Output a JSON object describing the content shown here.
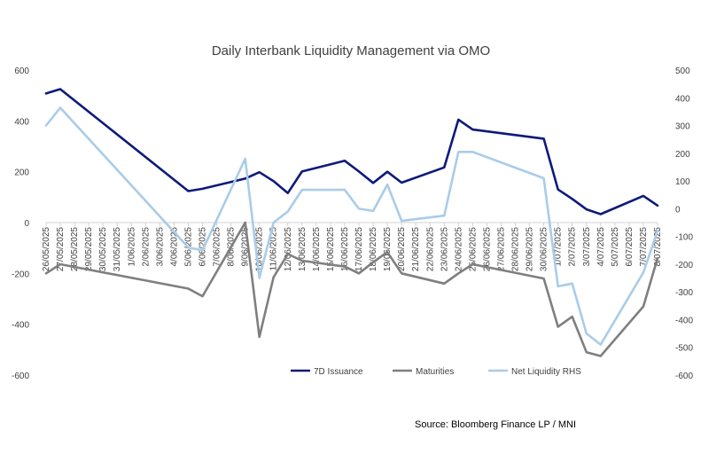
{
  "chart_data": {
    "type": "line",
    "title": "Daily Interbank Liquidity Management via OMO",
    "source": "Source: Bloomberg Finance LP / MNI",
    "xlabel": "",
    "ylabel": "",
    "ylim": [
      -600,
      600
    ],
    "y2lim": [
      -600,
      500
    ],
    "y_ticks": [
      "600",
      "400",
      "200",
      "0",
      "-200",
      "-400",
      "-600"
    ],
    "y2_ticks": [
      "500",
      "400",
      "300",
      "200",
      "100",
      "0",
      "-100",
      "-200",
      "-300",
      "-400",
      "-500",
      "-600"
    ],
    "grid": false,
    "legend_position": "bottom",
    "x_tick_labels": [
      "26/05/2025",
      "27/05/2025",
      "28/05/2025",
      "29/05/2025",
      "30/05/2025",
      "31/05/2025",
      "1/06/2025",
      "2/06/2025",
      "3/06/2025",
      "4/06/2025",
      "5/06/2025",
      "6/06/2025",
      "7/06/2025",
      "8/06/2025",
      "9/06/2025",
      "10/06/2025",
      "11/06/2025",
      "12/06/2025",
      "13/06/2025",
      "14/06/2025",
      "15/06/2025",
      "16/06/2025",
      "17/06/2025",
      "18/06/2025",
      "19/06/2025",
      "20/06/2025",
      "21/06/2025",
      "22/06/2025",
      "23/06/2025",
      "24/06/2025",
      "25/06/2025",
      "26/06/2025",
      "27/06/2025",
      "28/06/2025",
      "29/06/2025",
      "30/06/2025",
      "1/07/2025",
      "2/07/2025",
      "3/07/2025",
      "4/07/2025",
      "5/07/2025",
      "6/07/2025",
      "7/07/2025",
      "8/07/2025"
    ],
    "series": [
      {
        "name": "7D Issuance",
        "axis": "left",
        "color": "#0d1a7a",
        "x": [
          "26/05/2025",
          "27/05/2025",
          "5/06/2025",
          "6/06/2025",
          "9/06/2025",
          "10/06/2025",
          "11/06/2025",
          "12/06/2025",
          "13/06/2025",
          "16/06/2025",
          "17/06/2025",
          "18/06/2025",
          "19/06/2025",
          "20/06/2025",
          "23/06/2025",
          "24/06/2025",
          "25/06/2025",
          "30/06/2025",
          "1/07/2025",
          "2/07/2025",
          "3/07/2025",
          "4/07/2025",
          "7/07/2025",
          "8/07/2025"
        ],
        "values": [
          508,
          525,
          124,
          133,
          173,
          198,
          163,
          116,
          201,
          243,
          201,
          156,
          200,
          157,
          217,
          405,
          366,
          330,
          130,
          93,
          52,
          33,
          105,
          67
        ]
      },
      {
        "name": "Maturities",
        "axis": "left",
        "color": "#7f7f7f",
        "x": [
          "26/05/2025",
          "27/05/2025",
          "5/06/2025",
          "6/06/2025",
          "9/06/2025",
          "10/06/2025",
          "11/06/2025",
          "12/06/2025",
          "13/06/2025",
          "16/06/2025",
          "17/06/2025",
          "18/06/2025",
          "19/06/2025",
          "20/06/2025",
          "23/06/2025",
          "24/06/2025",
          "25/06/2025",
          "30/06/2025",
          "1/07/2025",
          "2/07/2025",
          "3/07/2025",
          "4/07/2025",
          "7/07/2025",
          "8/07/2025"
        ],
        "values": [
          -200,
          -164,
          -260,
          -290,
          0,
          -450,
          -215,
          -124,
          -150,
          -173,
          -200,
          -156,
          -116,
          -200,
          -240,
          -200,
          -164,
          -220,
          -410,
          -370,
          -510,
          -525,
          -330,
          -140
        ]
      },
      {
        "name": "Net Liquidity RHS",
        "axis": "right",
        "color": "#a9cce8",
        "x": [
          "26/05/2025",
          "27/05/2025",
          "5/06/2025",
          "6/06/2025",
          "9/06/2025",
          "10/06/2025",
          "11/06/2025",
          "12/06/2025",
          "13/06/2025",
          "16/06/2025",
          "17/06/2025",
          "18/06/2025",
          "19/06/2025",
          "20/06/2025",
          "23/06/2025",
          "24/06/2025",
          "25/06/2025",
          "30/06/2025",
          "1/07/2025",
          "2/07/2025",
          "3/07/2025",
          "4/07/2025",
          "7/07/2025",
          "8/07/2025"
        ],
        "values": [
          300,
          364,
          -140,
          -150,
          180,
          -250,
          -50,
          -10,
          68,
          68,
          0,
          -8,
          87,
          -44,
          -25,
          205,
          205,
          110,
          -280,
          -270,
          -450,
          -490,
          -230,
          -80
        ]
      }
    ]
  }
}
